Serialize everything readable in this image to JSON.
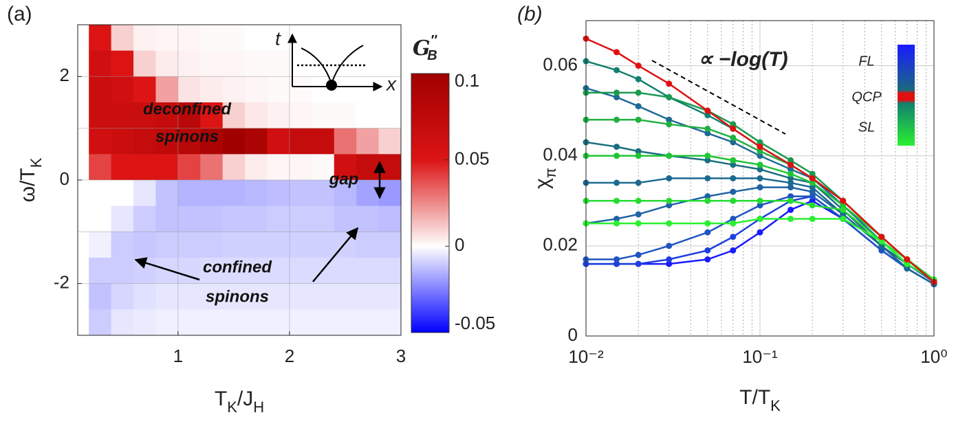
{
  "chart_data": [
    {
      "type": "heatmap",
      "panel_label": "(a)",
      "xlabel": [
        "T",
        "K",
        "/J",
        "H"
      ],
      "ylabel": [
        "ω/T",
        "K"
      ],
      "xlim": [
        0.1,
        3
      ],
      "ylim": [
        -3,
        3
      ],
      "xticks": [
        1,
        2,
        3
      ],
      "yticks": [
        -2,
        0,
        2
      ],
      "xgrid": [
        1,
        2
      ],
      "ygrid": [
        -2,
        -1,
        0,
        1,
        2
      ],
      "x_edges": [
        0.2,
        0.4,
        0.6,
        0.8,
        1.0,
        1.2,
        1.4,
        1.6,
        1.8,
        2.0,
        2.2,
        2.4,
        2.6,
        2.8,
        3.0
      ],
      "y_edges": [
        3,
        2.5,
        2,
        1.5,
        1,
        0.5,
        0,
        -0.5,
        -1,
        -1.5,
        -2,
        -2.5,
        -3
      ],
      "z": [
        [
          0.05,
          0.01,
          0.003,
          0.002,
          0.002,
          0.001,
          0.001,
          0,
          0,
          0,
          0,
          0,
          0,
          0
        ],
        [
          0.06,
          0.05,
          0.01,
          0.004,
          0.003,
          0.002,
          0.002,
          0.001,
          0.001,
          0,
          0,
          0,
          0,
          0
        ],
        [
          0.065,
          0.06,
          0.05,
          0.02,
          0.006,
          0.004,
          0.003,
          0.002,
          0.001,
          0.001,
          0,
          0,
          0,
          0
        ],
        [
          0.065,
          0.065,
          0.065,
          0.07,
          0.08,
          0.05,
          0.01,
          0.005,
          0.003,
          0.002,
          0.001,
          0.001,
          0,
          0
        ],
        [
          0.06,
          0.065,
          0.07,
          0.075,
          0.08,
          0.09,
          0.1,
          0.09,
          0.06,
          0.07,
          0.07,
          0.03,
          0.02,
          0.01
        ],
        [
          0.04,
          0.05,
          0.05,
          0.05,
          0.04,
          0.03,
          0.01,
          0.004,
          0.002,
          0.002,
          0.001,
          0.06,
          0.07,
          0.07
        ],
        [
          0,
          0,
          -0.005,
          -0.012,
          -0.015,
          -0.015,
          -0.015,
          -0.014,
          -0.013,
          -0.012,
          -0.012,
          -0.014,
          -0.018,
          -0.02
        ],
        [
          0,
          -0.005,
          -0.01,
          -0.012,
          -0.012,
          -0.012,
          -0.011,
          -0.011,
          -0.01,
          -0.01,
          -0.01,
          -0.012,
          -0.012,
          -0.013
        ],
        [
          -0.003,
          -0.01,
          -0.011,
          -0.01,
          -0.01,
          -0.01,
          -0.009,
          -0.009,
          -0.009,
          -0.009,
          -0.009,
          -0.009,
          -0.01,
          -0.01
        ],
        [
          -0.01,
          -0.01,
          -0.009,
          -0.008,
          -0.008,
          -0.007,
          -0.007,
          -0.007,
          -0.007,
          -0.007,
          -0.007,
          -0.007,
          -0.007,
          -0.007
        ],
        [
          -0.012,
          -0.008,
          -0.006,
          -0.005,
          -0.005,
          -0.005,
          -0.005,
          -0.005,
          -0.005,
          -0.005,
          -0.005,
          -0.005,
          -0.005,
          -0.005
        ],
        [
          -0.01,
          -0.005,
          -0.004,
          -0.003,
          -0.003,
          -0.003,
          -0.003,
          -0.003,
          -0.003,
          -0.003,
          -0.003,
          -0.003,
          -0.003,
          -0.003
        ]
      ],
      "clim": [
        -0.05,
        0.1
      ],
      "cticks": [
        -0.05,
        0,
        0.05,
        0.1
      ],
      "colorbar_label": {
        "base": "G",
        "sup": "′′",
        "sub": "B"
      },
      "inset_labels": [
        "t",
        "x"
      ],
      "annotations": [
        "deconfined",
        "spinons",
        "gap",
        "confined",
        "spinons"
      ]
    },
    {
      "type": "line",
      "panel_label": "(b)",
      "xlabel": [
        "T/T",
        "K"
      ],
      "ylabel": [
        "χ",
        "π"
      ],
      "log_x": true,
      "xlim": [
        0.01,
        1
      ],
      "ylim": [
        0,
        0.07
      ],
      "xticks": [
        {
          "value": 0.01,
          "label": "10⁻²"
        },
        {
          "value": 0.1,
          "label": "10⁻¹"
        },
        {
          "value": 1,
          "label": "10⁰"
        }
      ],
      "xminor": [
        0.02,
        0.03,
        0.04,
        0.05,
        0.06,
        0.07,
        0.08,
        0.09,
        0.2,
        0.3,
        0.4,
        0.5,
        0.6,
        0.7,
        0.8,
        0.9
      ],
      "yticks": [
        0,
        0.02,
        0.04,
        0.06
      ],
      "grid": true,
      "annotation": "∝ −log(T)",
      "legend_labels": [
        "FL",
        "QCP",
        "SL"
      ],
      "x": [
        0.01,
        0.015,
        0.02,
        0.03,
        0.05,
        0.07,
        0.1,
        0.15,
        0.2,
        0.3,
        0.5,
        0.7,
        1.0
      ],
      "series": [
        {
          "color": "#1a1aff",
          "values": [
            0.016,
            0.016,
            0.016,
            0.016,
            0.017,
            0.019,
            0.023,
            0.028,
            0.03,
            0.026,
            0.019,
            0.015,
            0.0115
          ]
        },
        {
          "color": "#1f3fe0",
          "values": [
            0.016,
            0.016,
            0.016,
            0.017,
            0.019,
            0.022,
            0.026,
            0.03,
            0.031,
            0.026,
            0.019,
            0.015,
            0.0115
          ]
        },
        {
          "color": "#1f55c0",
          "values": [
            0.017,
            0.017,
            0.018,
            0.02,
            0.023,
            0.026,
            0.029,
            0.031,
            0.031,
            0.026,
            0.019,
            0.015,
            0.0115
          ]
        },
        {
          "color": "#1f62a5",
          "values": [
            0.025,
            0.026,
            0.027,
            0.029,
            0.031,
            0.032,
            0.033,
            0.033,
            0.032,
            0.027,
            0.02,
            0.015,
            0.0115
          ]
        },
        {
          "color": "#1c6a90",
          "values": [
            0.034,
            0.034,
            0.034,
            0.035,
            0.035,
            0.035,
            0.035,
            0.034,
            0.033,
            0.027,
            0.02,
            0.015,
            0.0115
          ]
        },
        {
          "color": "#1a6f80",
          "values": [
            0.043,
            0.042,
            0.041,
            0.04,
            0.039,
            0.038,
            0.037,
            0.035,
            0.034,
            0.028,
            0.02,
            0.016,
            0.012
          ]
        },
        {
          "color": "#1f6a95",
          "values": [
            0.055,
            0.053,
            0.051,
            0.048,
            0.045,
            0.043,
            0.04,
            0.037,
            0.035,
            0.029,
            0.021,
            0.016,
            0.012
          ]
        },
        {
          "color": "#128070",
          "values": [
            0.061,
            0.059,
            0.057,
            0.053,
            0.049,
            0.046,
            0.042,
            0.038,
            0.035,
            0.03,
            0.022,
            0.017,
            0.012
          ]
        },
        {
          "color": "#1a9a50",
          "values": [
            0.054,
            0.054,
            0.054,
            0.053,
            0.05,
            0.047,
            0.043,
            0.039,
            0.036,
            0.03,
            0.022,
            0.017,
            0.0125
          ]
        },
        {
          "color": "#20b040",
          "values": [
            0.048,
            0.048,
            0.048,
            0.047,
            0.046,
            0.044,
            0.041,
            0.038,
            0.035,
            0.03,
            0.022,
            0.017,
            0.0125
          ]
        },
        {
          "color": "#20c535",
          "values": [
            0.04,
            0.04,
            0.04,
            0.04,
            0.04,
            0.039,
            0.038,
            0.036,
            0.034,
            0.029,
            0.022,
            0.017,
            0.0125
          ]
        },
        {
          "color": "#25dc30",
          "values": [
            0.03,
            0.03,
            0.03,
            0.03,
            0.03,
            0.03,
            0.03,
            0.03,
            0.029,
            0.028,
            0.021,
            0.017,
            0.0125
          ]
        },
        {
          "color": "#2af030",
          "values": [
            0.025,
            0.025,
            0.025,
            0.025,
            0.025,
            0.025,
            0.026,
            0.026,
            0.026,
            0.026,
            0.021,
            0.016,
            0.0125
          ]
        },
        {
          "color": "#e01010",
          "values": [
            0.066,
            0.063,
            0.06,
            0.056,
            0.05,
            0.046,
            0.042,
            0.038,
            0.035,
            0.03,
            0.022,
            0.017,
            0.012
          ]
        }
      ]
    }
  ]
}
